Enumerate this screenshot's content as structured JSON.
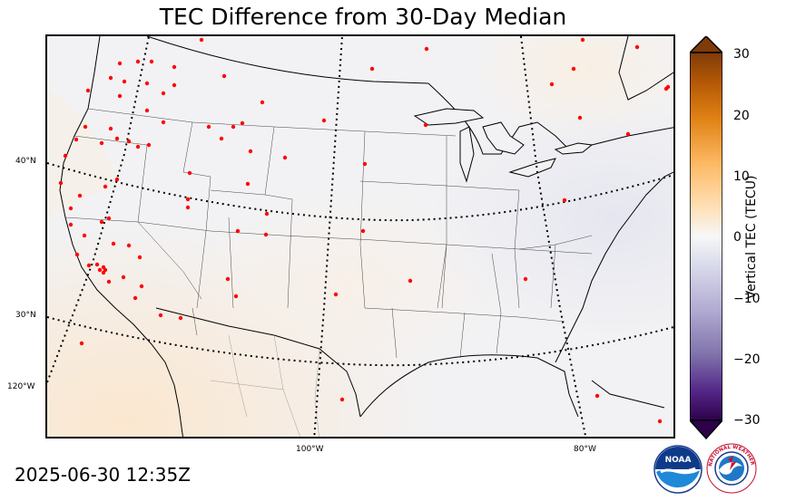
{
  "title": "TEC Difference from 30-Day Median",
  "timestamp": "2025-06-30 12:35Z",
  "map": {
    "latitude_labels": [
      "40°N",
      "30°N"
    ],
    "longitude_labels": [
      "120°W",
      "100°W",
      "80°W"
    ],
    "station_color": "#ff0000",
    "coastline_color": "#000000",
    "background_color": "#f2f2f4"
  },
  "colorbar": {
    "label": "Vertical TEC (TECU)",
    "ticks": [
      "30",
      "20",
      "10",
      "0",
      "−10",
      "−20",
      "−30"
    ],
    "range": [
      -30,
      30
    ],
    "colors": [
      "#7f3b08",
      "#b35806",
      "#e08214",
      "#fdb863",
      "#fee0b6",
      "#f7f7f7",
      "#d8daeb",
      "#b2abd2",
      "#8073ac",
      "#542788",
      "#2d004b"
    ]
  },
  "logos": {
    "noaa": "NOAA",
    "nws": "NATIONAL WEATHER SERVICE"
  }
}
